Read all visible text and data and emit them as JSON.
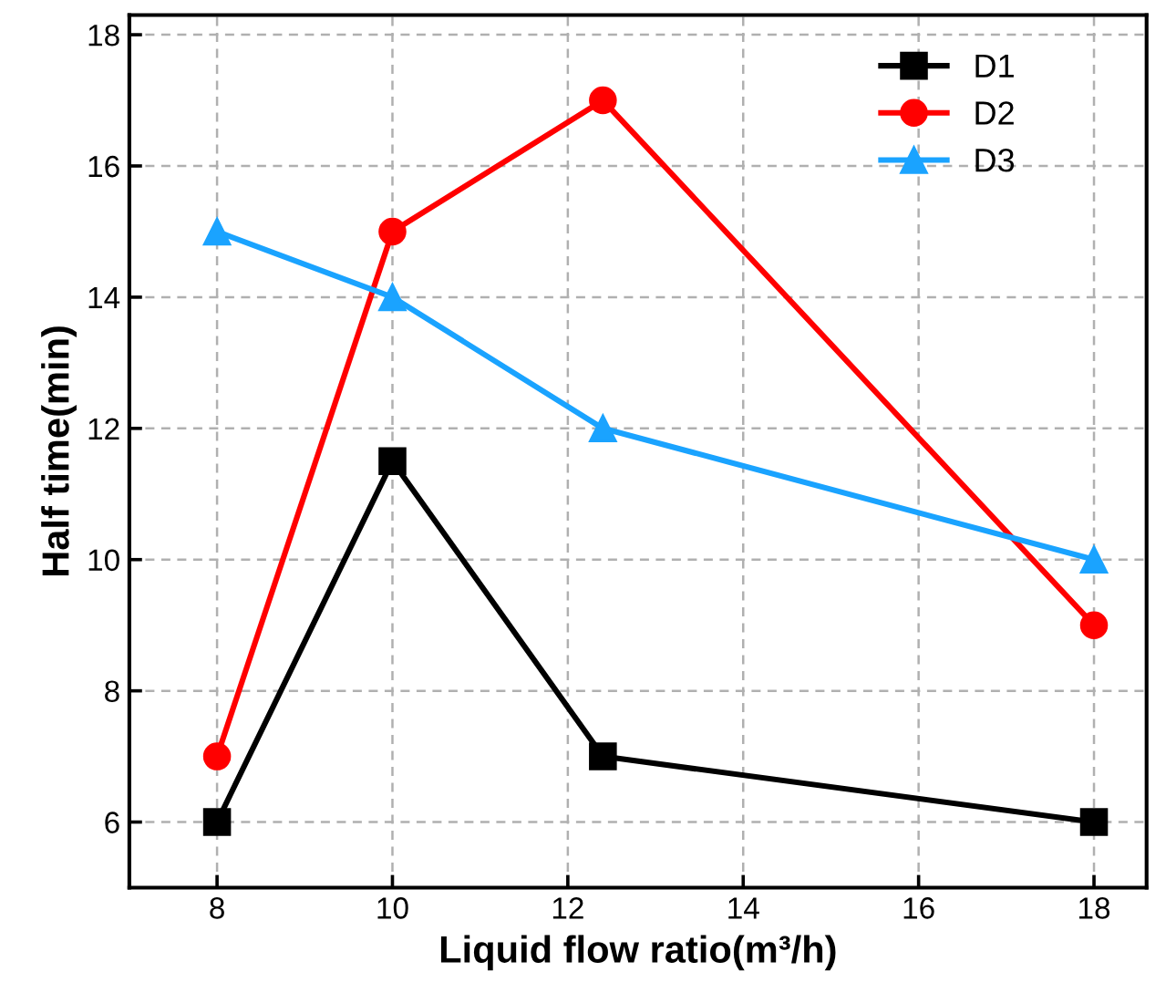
{
  "chart_data": {
    "type": "line",
    "xlabel": "Liquid flow ratio(m³/h)",
    "ylabel": "Half time(min)",
    "x": [
      8,
      10,
      12.4,
      18
    ],
    "series": [
      {
        "name": "D1",
        "color": "#000000",
        "marker": "square",
        "values": [
          6,
          11.5,
          7,
          6
        ]
      },
      {
        "name": "D2",
        "color": "#ff0000",
        "marker": "circle",
        "values": [
          7,
          15,
          17,
          9
        ]
      },
      {
        "name": "D3",
        "color": "#1aa3ff",
        "marker": "triangle",
        "values": [
          15,
          14,
          12,
          10
        ]
      }
    ],
    "xlim": [
      7,
      18.6
    ],
    "ylim": [
      5,
      18.3
    ],
    "xticks": [
      8,
      10,
      12,
      14,
      16,
      18
    ],
    "yticks": [
      6,
      8,
      10,
      12,
      14,
      16,
      18
    ],
    "grid": true,
    "legend": "top right",
    "line_style": "solid"
  }
}
